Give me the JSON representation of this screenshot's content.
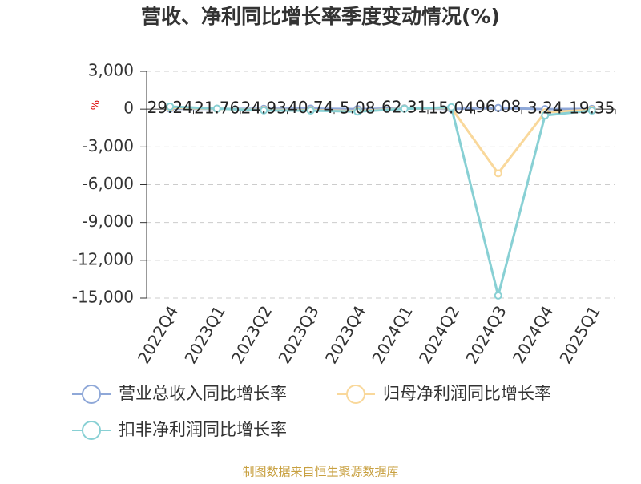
{
  "chart_data": {
    "type": "line",
    "title": "营收、净利同比增长率季度变动情况(%)",
    "y_label": "%",
    "source": "制图数据来自恒生聚源数据库",
    "categories": [
      "2022Q4",
      "2023Q1",
      "2023Q2",
      "2023Q3",
      "2023Q4",
      "2024Q1",
      "2024Q2",
      "2024Q3",
      "2024Q4",
      "2025Q1"
    ],
    "series": [
      {
        "name": "营业总收入同比增长率",
        "color": "#8fa8d8",
        "values": [
          29.24,
          21.76,
          24.93,
          40.74,
          5.08,
          62.31,
          15.04,
          96.08,
          3.24,
          19.35
        ],
        "show_labels": true
      },
      {
        "name": "归母净利润同比增长率",
        "color": "#f9d89b",
        "values": [
          120,
          30,
          -60,
          -80,
          -150,
          40,
          100,
          -5100,
          -250,
          -50
        ],
        "show_labels": false
      },
      {
        "name": "扣非净利润同比增长率",
        "color": "#88d0d4",
        "values": [
          200,
          40,
          -100,
          -120,
          -200,
          30,
          150,
          -14800,
          -500,
          -120
        ],
        "show_labels": false
      }
    ],
    "ylim": [
      -15000,
      3000
    ],
    "yticks": [
      {
        "value": 3000,
        "label": "3,000"
      },
      0,
      {
        "value": -3000,
        "label": "-3,000"
      },
      {
        "value": -6000,
        "label": "-6,000"
      },
      {
        "value": -9000,
        "label": "-9,000"
      },
      {
        "value": -12000,
        "label": "-12,000"
      },
      {
        "value": -15000,
        "label": "-15,000"
      }
    ],
    "grid": true
  }
}
